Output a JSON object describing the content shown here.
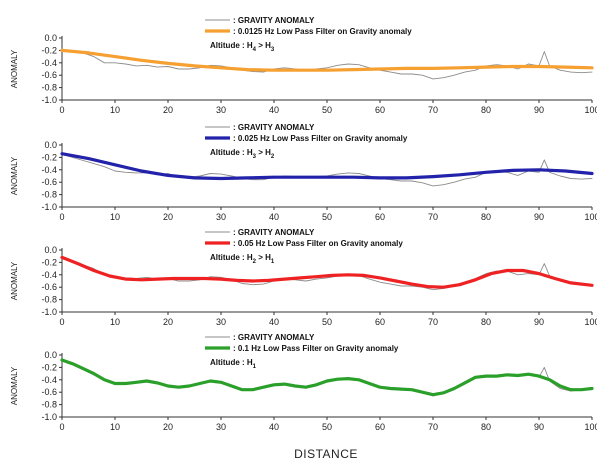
{
  "figure": {
    "xlabel": "DISTANCE"
  },
  "chart_data": [
    {
      "type": "line",
      "ylabel": "ANOMALY",
      "xlim": [
        0,
        100
      ],
      "ylim": [
        -1.0,
        0.0
      ],
      "x_ticks": [
        0,
        10,
        20,
        30,
        40,
        50,
        60,
        70,
        80,
        90,
        100
      ],
      "y_ticks": [
        "0.0",
        "-0.2",
        "-0.4",
        "-0.6",
        "-0.8",
        "-1.0"
      ],
      "legend": {
        "placement": "top-center",
        "altitude": "Altitude : H4 > H3"
      },
      "series": [
        {
          "name": ": GRAVITY ANOMALY",
          "color": "#8c8c8c",
          "x": [
            0,
            2,
            4,
            6,
            8,
            10,
            12,
            14,
            16,
            18,
            20,
            22,
            24,
            26,
            28,
            30,
            32,
            34,
            36,
            38,
            40,
            42,
            44,
            46,
            48,
            50,
            52,
            54,
            56,
            58,
            60,
            62,
            64,
            66,
            68,
            70,
            72,
            74,
            76,
            78,
            80,
            82,
            84,
            86,
            88,
            90,
            91,
            92,
            94,
            96,
            98,
            100
          ],
          "y": [
            -0.18,
            -0.22,
            -0.24,
            -0.3,
            -0.4,
            -0.4,
            -0.42,
            -0.45,
            -0.44,
            -0.47,
            -0.46,
            -0.5,
            -0.5,
            -0.48,
            -0.44,
            -0.45,
            -0.48,
            -0.52,
            -0.54,
            -0.55,
            -0.5,
            -0.48,
            -0.5,
            -0.52,
            -0.5,
            -0.48,
            -0.44,
            -0.42,
            -0.43,
            -0.48,
            -0.52,
            -0.55,
            -0.58,
            -0.58,
            -0.6,
            -0.66,
            -0.64,
            -0.6,
            -0.55,
            -0.52,
            -0.45,
            -0.43,
            -0.45,
            -0.5,
            -0.42,
            -0.45,
            -0.22,
            -0.45,
            -0.52,
            -0.55,
            -0.56,
            -0.55
          ]
        },
        {
          "name": ": 0.0125 Hz Low Pass Filter on Gravity anomaly",
          "color": "#f5a030",
          "x": [
            0,
            5,
            10,
            15,
            20,
            25,
            30,
            35,
            40,
            45,
            50,
            55,
            60,
            65,
            70,
            75,
            80,
            85,
            90,
            95,
            100
          ],
          "y": [
            -0.2,
            -0.24,
            -0.3,
            -0.36,
            -0.41,
            -0.45,
            -0.48,
            -0.51,
            -0.52,
            -0.52,
            -0.52,
            -0.51,
            -0.5,
            -0.49,
            -0.49,
            -0.48,
            -0.47,
            -0.46,
            -0.46,
            -0.47,
            -0.48
          ]
        }
      ]
    },
    {
      "type": "line",
      "ylabel": "ANOMALY",
      "xlim": [
        0,
        100
      ],
      "ylim": [
        -1.0,
        0.0
      ],
      "x_ticks": [
        0,
        10,
        20,
        30,
        40,
        50,
        60,
        70,
        80,
        90,
        100
      ],
      "y_ticks": [
        "0.0",
        "-0.2",
        "-0.4",
        "-0.6",
        "-0.8",
        "-1.0"
      ],
      "legend": {
        "placement": "top-center",
        "altitude": "Altitude : H3 > H2"
      },
      "series": [
        {
          "name": ": GRAVITY ANOMALY",
          "color": "#8c8c8c",
          "x": [
            0,
            2,
            4,
            6,
            8,
            10,
            12,
            14,
            16,
            18,
            20,
            22,
            24,
            26,
            28,
            30,
            32,
            34,
            36,
            38,
            40,
            42,
            44,
            46,
            48,
            50,
            52,
            54,
            56,
            58,
            60,
            62,
            64,
            66,
            68,
            70,
            72,
            74,
            76,
            78,
            80,
            82,
            84,
            86,
            88,
            90,
            91,
            92,
            94,
            96,
            98,
            100
          ],
          "y": [
            -0.15,
            -0.2,
            -0.25,
            -0.3,
            -0.35,
            -0.42,
            -0.44,
            -0.45,
            -0.45,
            -0.48,
            -0.46,
            -0.52,
            -0.52,
            -0.5,
            -0.46,
            -0.47,
            -0.5,
            -0.54,
            -0.56,
            -0.56,
            -0.52,
            -0.5,
            -0.51,
            -0.53,
            -0.51,
            -0.5,
            -0.47,
            -0.45,
            -0.46,
            -0.5,
            -0.54,
            -0.56,
            -0.58,
            -0.58,
            -0.61,
            -0.66,
            -0.64,
            -0.6,
            -0.55,
            -0.52,
            -0.44,
            -0.43,
            -0.44,
            -0.49,
            -0.42,
            -0.44,
            -0.24,
            -0.44,
            -0.5,
            -0.54,
            -0.55,
            -0.54
          ]
        },
        {
          "name": ": 0.025 Hz Low Pass Filter on Gravity anomaly",
          "color": "#2222aa",
          "x": [
            0,
            5,
            10,
            15,
            20,
            25,
            30,
            35,
            40,
            45,
            50,
            55,
            60,
            65,
            70,
            75,
            80,
            85,
            90,
            95,
            100
          ],
          "y": [
            -0.14,
            -0.22,
            -0.32,
            -0.42,
            -0.49,
            -0.53,
            -0.54,
            -0.53,
            -0.52,
            -0.52,
            -0.52,
            -0.52,
            -0.53,
            -0.53,
            -0.51,
            -0.48,
            -0.44,
            -0.41,
            -0.4,
            -0.42,
            -0.46
          ]
        }
      ]
    },
    {
      "type": "line",
      "ylabel": "ANOMALY",
      "xlim": [
        0,
        100
      ],
      "ylim": [
        -1.0,
        0.0
      ],
      "x_ticks": [
        0,
        10,
        20,
        30,
        40,
        50,
        60,
        70,
        80,
        90,
        100
      ],
      "y_ticks": [
        "0.0",
        "-0.2",
        "-0.4",
        "-0.6",
        "-0.8",
        "-1.0"
      ],
      "legend": {
        "placement": "top-center",
        "altitude": "Altitude : H2 > H1"
      },
      "series": [
        {
          "name": ": GRAVITY ANOMALY",
          "color": "#8c8c8c",
          "x": [
            0,
            2,
            4,
            6,
            8,
            10,
            12,
            14,
            16,
            18,
            20,
            22,
            24,
            26,
            28,
            30,
            32,
            34,
            36,
            38,
            40,
            42,
            44,
            46,
            48,
            50,
            52,
            54,
            56,
            58,
            60,
            62,
            64,
            66,
            68,
            70,
            72,
            74,
            76,
            78,
            80,
            82,
            84,
            86,
            88,
            90,
            91,
            92,
            94,
            96,
            98,
            100
          ],
          "y": [
            -0.12,
            -0.18,
            -0.24,
            -0.3,
            -0.4,
            -0.44,
            -0.45,
            -0.46,
            -0.44,
            -0.47,
            -0.46,
            -0.5,
            -0.5,
            -0.48,
            -0.43,
            -0.44,
            -0.48,
            -0.54,
            -0.56,
            -0.55,
            -0.5,
            -0.47,
            -0.48,
            -0.5,
            -0.47,
            -0.45,
            -0.42,
            -0.4,
            -0.41,
            -0.47,
            -0.52,
            -0.55,
            -0.58,
            -0.58,
            -0.6,
            -0.64,
            -0.62,
            -0.58,
            -0.52,
            -0.46,
            -0.38,
            -0.34,
            -0.34,
            -0.4,
            -0.38,
            -0.4,
            -0.22,
            -0.42,
            -0.5,
            -0.54,
            -0.56,
            -0.57
          ]
        },
        {
          "name": ": 0.05 Hz Low Pass Filter on Gravity anomaly",
          "color": "#ee2222",
          "x": [
            0,
            3,
            6,
            9,
            12,
            15,
            18,
            21,
            24,
            27,
            30,
            33,
            36,
            39,
            42,
            45,
            48,
            51,
            54,
            57,
            60,
            63,
            66,
            69,
            72,
            75,
            78,
            81,
            84,
            87,
            90,
            93,
            96,
            100
          ],
          "y": [
            -0.12,
            -0.22,
            -0.33,
            -0.42,
            -0.47,
            -0.48,
            -0.47,
            -0.46,
            -0.46,
            -0.46,
            -0.47,
            -0.49,
            -0.5,
            -0.49,
            -0.47,
            -0.45,
            -0.43,
            -0.41,
            -0.4,
            -0.41,
            -0.45,
            -0.5,
            -0.55,
            -0.59,
            -0.6,
            -0.56,
            -0.48,
            -0.38,
            -0.33,
            -0.33,
            -0.38,
            -0.46,
            -0.53,
            -0.57
          ]
        }
      ]
    },
    {
      "type": "line",
      "ylabel": "ANOMALY",
      "xlim": [
        0,
        100
      ],
      "ylim": [
        -1.0,
        0.0
      ],
      "x_ticks": [
        0,
        10,
        20,
        30,
        40,
        50,
        60,
        70,
        80,
        90,
        100
      ],
      "y_ticks": [
        "0.0",
        "-0.2",
        "-0.4",
        "-0.6",
        "-0.8",
        "-1.0"
      ],
      "legend": {
        "placement": "top-center",
        "altitude": "Altitude : H1"
      },
      "series": [
        {
          "name": ": GRAVITY ANOMALY",
          "color": "#8c8c8c",
          "x": [
            0,
            2,
            4,
            6,
            8,
            10,
            12,
            14,
            16,
            18,
            20,
            22,
            24,
            26,
            28,
            30,
            32,
            34,
            36,
            38,
            40,
            42,
            44,
            46,
            48,
            50,
            52,
            54,
            56,
            58,
            60,
            62,
            64,
            66,
            68,
            70,
            72,
            74,
            76,
            78,
            80,
            82,
            84,
            86,
            88,
            90,
            91,
            92,
            94,
            96,
            98,
            100
          ],
          "y": [
            -0.1,
            -0.16,
            -0.24,
            -0.32,
            -0.4,
            -0.46,
            -0.46,
            -0.44,
            -0.42,
            -0.46,
            -0.5,
            -0.52,
            -0.5,
            -0.46,
            -0.42,
            -0.44,
            -0.5,
            -0.56,
            -0.56,
            -0.52,
            -0.48,
            -0.47,
            -0.5,
            -0.52,
            -0.48,
            -0.42,
            -0.4,
            -0.38,
            -0.4,
            -0.46,
            -0.52,
            -0.54,
            -0.56,
            -0.56,
            -0.6,
            -0.66,
            -0.62,
            -0.54,
            -0.46,
            -0.36,
            -0.34,
            -0.34,
            -0.32,
            -0.34,
            -0.3,
            -0.36,
            -0.2,
            -0.42,
            -0.54,
            -0.58,
            -0.56,
            -0.55
          ]
        },
        {
          "name": ": 0.1 Hz Low Pass Filter on Gravity anomaly",
          "color": "#2aa02a",
          "x": [
            0,
            2,
            4,
            6,
            8,
            10,
            12,
            14,
            16,
            18,
            20,
            22,
            24,
            26,
            28,
            30,
            32,
            34,
            36,
            38,
            40,
            42,
            44,
            46,
            48,
            50,
            52,
            54,
            56,
            58,
            60,
            62,
            64,
            66,
            68,
            70,
            72,
            74,
            76,
            78,
            80,
            82,
            84,
            86,
            88,
            90,
            92,
            94,
            96,
            98,
            100
          ],
          "y": [
            -0.08,
            -0.14,
            -0.22,
            -0.3,
            -0.4,
            -0.46,
            -0.46,
            -0.44,
            -0.42,
            -0.45,
            -0.5,
            -0.52,
            -0.5,
            -0.46,
            -0.42,
            -0.44,
            -0.5,
            -0.56,
            -0.56,
            -0.52,
            -0.48,
            -0.47,
            -0.5,
            -0.52,
            -0.48,
            -0.42,
            -0.39,
            -0.38,
            -0.4,
            -0.46,
            -0.52,
            -0.54,
            -0.55,
            -0.56,
            -0.6,
            -0.64,
            -0.61,
            -0.54,
            -0.45,
            -0.36,
            -0.34,
            -0.34,
            -0.32,
            -0.33,
            -0.31,
            -0.34,
            -0.4,
            -0.5,
            -0.56,
            -0.56,
            -0.54
          ]
        }
      ]
    }
  ]
}
